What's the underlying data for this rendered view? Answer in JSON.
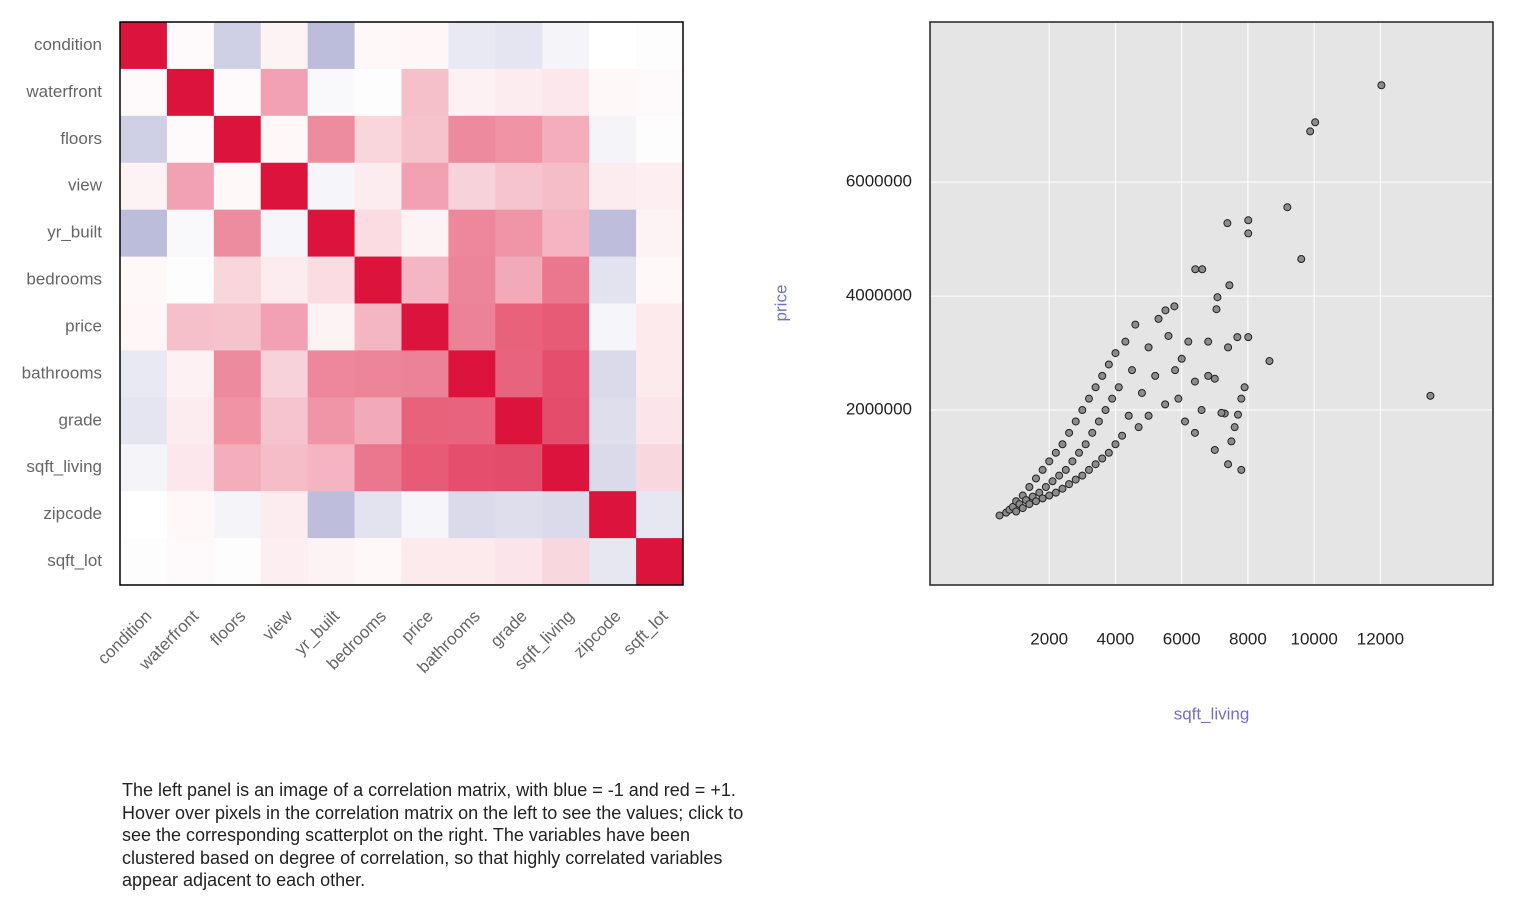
{
  "chart_data": [
    {
      "type": "heatmap",
      "categories": [
        "condition",
        "waterfront",
        "floors",
        "view",
        "yr_built",
        "bedrooms",
        "price",
        "bathrooms",
        "grade",
        "sqft_living",
        "zipcode",
        "sqft_lot"
      ],
      "values": [
        [
          1,
          0.02,
          -0.26,
          0.05,
          -0.36,
          0.03,
          0.04,
          -0.12,
          -0.14,
          -0.06,
          0,
          -0.01
        ],
        [
          0.02,
          1,
          0.02,
          0.4,
          -0.03,
          -0.01,
          0.27,
          0.06,
          0.08,
          0.1,
          0.03,
          0.02
        ],
        [
          -0.26,
          0.02,
          1,
          0.03,
          0.49,
          0.18,
          0.26,
          0.5,
          0.46,
          0.35,
          -0.06,
          -0.01
        ],
        [
          0.05,
          0.4,
          0.03,
          1,
          -0.05,
          0.08,
          0.4,
          0.19,
          0.25,
          0.28,
          0.08,
          0.07
        ],
        [
          -0.36,
          -0.03,
          0.49,
          -0.05,
          1,
          0.15,
          0.05,
          0.51,
          0.45,
          0.32,
          -0.35,
          0.05
        ],
        [
          0.03,
          -0.01,
          0.18,
          0.08,
          0.15,
          1,
          0.31,
          0.52,
          0.36,
          0.58,
          -0.15,
          0.03
        ],
        [
          0.04,
          0.27,
          0.26,
          0.4,
          0.05,
          0.31,
          1,
          0.53,
          0.67,
          0.7,
          -0.05,
          0.09
        ],
        [
          -0.12,
          0.06,
          0.5,
          0.19,
          0.51,
          0.52,
          0.53,
          1,
          0.66,
          0.75,
          -0.2,
          0.09
        ],
        [
          -0.14,
          0.08,
          0.46,
          0.25,
          0.45,
          0.36,
          0.67,
          0.66,
          1,
          0.76,
          -0.18,
          0.11
        ],
        [
          -0.06,
          0.1,
          0.35,
          0.28,
          0.32,
          0.58,
          0.7,
          0.75,
          0.76,
          1,
          -0.2,
          0.17
        ],
        [
          0,
          0.03,
          -0.06,
          0.08,
          -0.35,
          -0.15,
          -0.05,
          -0.2,
          -0.18,
          -0.2,
          1,
          -0.13
        ],
        [
          -0.01,
          0.02,
          -0.01,
          0.07,
          0.05,
          0.03,
          0.09,
          0.09,
          0.11,
          0.17,
          -0.13,
          1
        ]
      ],
      "zlim": [
        -1,
        1
      ],
      "colors": {
        "low": "#45459b",
        "mid": "#ffffff",
        "high": "#dc143c"
      }
    },
    {
      "type": "scatter",
      "x_label": "sqft_living",
      "y_label": "price",
      "x": [
        500,
        700,
        800,
        900,
        1000,
        1000,
        1100,
        1200,
        1200,
        1300,
        1400,
        1400,
        1500,
        1600,
        1600,
        1700,
        1800,
        1800,
        1900,
        2000,
        2000,
        2100,
        2200,
        2200,
        2300,
        2400,
        2400,
        2500,
        2600,
        2600,
        2700,
        2800,
        2800,
        2900,
        3000,
        3000,
        3100,
        3200,
        3200,
        3300,
        3400,
        3400,
        3500,
        3600,
        3600,
        3700,
        3800,
        3800,
        3900,
        4000,
        4000,
        4100,
        4200,
        4300,
        4400,
        4500,
        4600,
        4700,
        4800,
        5000,
        5000,
        5200,
        5300,
        5500,
        5600,
        5800,
        5900,
        6000,
        6100,
        6200,
        6400,
        6600,
        6800,
        6800,
        7000,
        6400,
        12030,
        10030,
        9880,
        7380,
        8010,
        8010,
        9190,
        9610,
        13510,
        8650,
        6410,
        6620,
        7440,
        7080,
        7050,
        7680,
        8010,
        5780,
        5510,
        7400,
        7900,
        7800,
        7700,
        7600,
        7300,
        7200,
        7500,
        7000,
        7800,
        7400
      ],
      "values": [
        150000,
        200000,
        250000,
        300000,
        220000,
        400000,
        350000,
        280000,
        500000,
        420000,
        350000,
        650000,
        480000,
        400000,
        800000,
        550000,
        450000,
        950000,
        650000,
        500000,
        1100000,
        750000,
        550000,
        1250000,
        850000,
        620000,
        1400000,
        950000,
        700000,
        1600000,
        1100000,
        780000,
        1800000,
        1250000,
        850000,
        2000000,
        1400000,
        950000,
        2200000,
        1600000,
        1050000,
        2400000,
        1800000,
        1150000,
        2600000,
        2000000,
        1250000,
        2800000,
        2200000,
        1400000,
        3000000,
        2400000,
        1550000,
        3200000,
        1900000,
        2700000,
        3500000,
        1700000,
        2300000,
        3100000,
        1900000,
        2600000,
        3600000,
        2100000,
        3300000,
        2700000,
        2200000,
        2900000,
        1800000,
        3200000,
        2500000,
        2000000,
        2600000,
        3200000,
        2550000,
        1600000,
        7700000,
        7050000,
        6890000,
        5280000,
        5330000,
        5100000,
        5560000,
        4650000,
        2250000,
        2860000,
        4470000,
        4470000,
        4190000,
        3980000,
        3770000,
        3280000,
        3280000,
        3820000,
        3750000,
        3100000,
        2400000,
        2200000,
        1920000,
        1700000,
        1940000,
        1950000,
        1450000,
        1300000,
        950000,
        1050000
      ],
      "color": "#8c8c8c",
      "xlim": [
        -1600,
        15400
      ],
      "ylim": [
        -1070000,
        8810000
      ],
      "xticks": [
        2000,
        4000,
        6000,
        8000,
        10000,
        12000
      ],
      "yticks": [
        2000000,
        4000000,
        6000000
      ],
      "grid": true
    }
  ],
  "caption": "The left panel is an image of a correlation matrix, with blue = -1 and red = +1. Hover over pixels in the correlation matrix on the left to see the values; click to see the corresponding scatterplot on the right. The variables have been clustered based on degree of correlation, so that highly correlated variables appear adjacent to each other."
}
